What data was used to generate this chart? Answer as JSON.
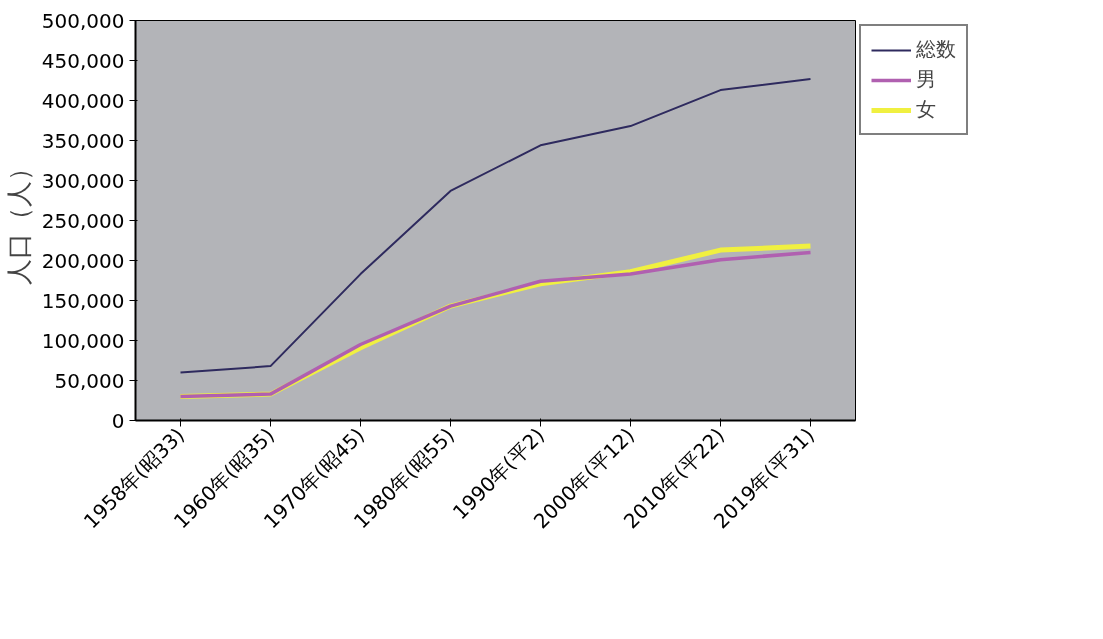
{
  "chart_data": {
    "type": "line",
    "ylabel": "人口（人）",
    "categories": [
      "1958年(昭33)",
      "1960年(昭35)",
      "1970年(昭45)",
      "1980年(昭55)",
      "1990年(平2)",
      "2000年(平12)",
      "2010年(平22)",
      "2019年(平31)"
    ],
    "series": [
      {
        "name": "総数",
        "color": "#2e2a5e",
        "values": [
          60000,
          68000,
          183000,
          287000,
          344000,
          368000,
          413000,
          427000
        ]
      },
      {
        "name": "男",
        "color": "#b060b0",
        "values": [
          30000,
          33000,
          95000,
          143000,
          174000,
          183000,
          201000,
          210000
        ]
      },
      {
        "name": "女",
        "color": "#f0f040",
        "values": [
          30000,
          33000,
          91000,
          143000,
          171000,
          186000,
          213000,
          218000
        ]
      }
    ],
    "ylim": [
      0,
      500000
    ],
    "yticks": [
      {
        "value": 0,
        "label": "0"
      },
      {
        "value": 50000,
        "label": "50,000"
      },
      {
        "value": 100000,
        "label": "100,000"
      },
      {
        "value": 150000,
        "label": "150,000"
      },
      {
        "value": 200000,
        "label": "200,000"
      },
      {
        "value": 250000,
        "label": "250,000"
      },
      {
        "value": 300000,
        "label": "300,000"
      },
      {
        "value": 350000,
        "label": "350,000"
      },
      {
        "value": 400000,
        "label": "400,000"
      },
      {
        "value": 450000,
        "label": "450,000"
      },
      {
        "value": 500000,
        "label": "500,000"
      }
    ],
    "grid": false,
    "legend": "top right",
    "marker": "none",
    "line_style": "solid"
  }
}
